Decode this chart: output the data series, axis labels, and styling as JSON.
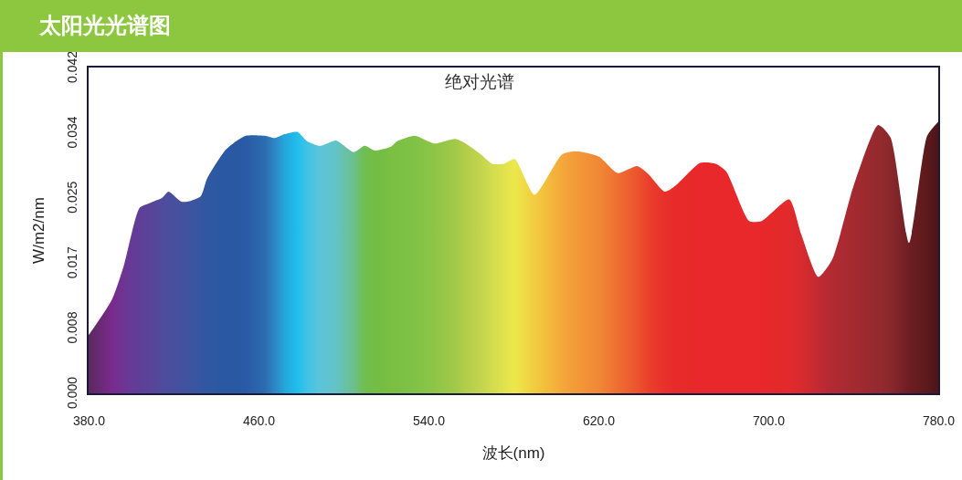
{
  "chart_data": {
    "type": "area",
    "title": "太阳光光谱图",
    "subtitle": "绝对光谱",
    "xlabel": "波长(nm)",
    "ylabel": "W/m2/nm",
    "x": [
      380,
      391,
      396.4,
      404,
      408.5,
      414.6,
      417.6,
      423.7,
      428,
      432.8,
      435.8,
      444.9,
      454,
      463,
      467.7,
      472.2,
      478.3,
      482.8,
      488.9,
      496.5,
      504.8,
      510,
      514.7,
      522.3,
      525.3,
      533.6,
      542.7,
      552.6,
      557,
      564.7,
      570,
      575.5,
      580.6,
      589.9,
      602.9,
      609.4,
      620.3,
      629,
      638.3,
      643.4,
      651.3,
      656.4,
      667.9,
      675.2,
      680.2,
      691,
      696.8,
      709.8,
      715.6,
      723.5,
      730,
      740.2,
      751.7,
      757.5,
      766.2,
      774.8,
      780
    ],
    "values": [
      0.0075,
      0.0121,
      0.0163,
      0.0239,
      0.0245,
      0.0252,
      0.026,
      0.0247,
      0.0248,
      0.0254,
      0.0277,
      0.0315,
      0.0332,
      0.0332,
      0.0329,
      0.0334,
      0.0337,
      0.0325,
      0.0319,
      0.0326,
      0.0311,
      0.0319,
      0.0313,
      0.0318,
      0.0325,
      0.0332,
      0.0322,
      0.0328,
      0.0323,
      0.0308,
      0.0296,
      0.0296,
      0.0302,
      0.0256,
      0.0308,
      0.0312,
      0.0305,
      0.0284,
      0.0293,
      0.0283,
      0.026,
      0.0268,
      0.0297,
      0.0296,
      0.0286,
      0.0222,
      0.0222,
      0.025,
      0.0204,
      0.015,
      0.0172,
      0.0268,
      0.0346,
      0.033,
      0.0194,
      0.0332,
      0.035
    ],
    "colors": [
      "#5a2a5e",
      "#7a2a8e",
      "#6e3593",
      "#5e3f98",
      "#5a4399",
      "#4f4b9c",
      "#4a4e9d",
      "#44519e",
      "#3e54a0",
      "#3656a1",
      "#2f58a2",
      "#2a58a3",
      "#2a5aa5",
      "#2c6cb0",
      "#2e86c4",
      "#24a6db",
      "#1fbfeb",
      "#3fc3e5",
      "#5cc4d8",
      "#62c3c8",
      "#6cc08a",
      "#6fbe4e",
      "#72bd44",
      "#78bf42",
      "#7bc043",
      "#80c245",
      "#8ec546",
      "#a2c948",
      "#b0cd4a",
      "#c4d44c",
      "#d2dc4e",
      "#e0e24e",
      "#ece84c",
      "#f2cc3e",
      "#f4a83a",
      "#f29a38",
      "#f08835",
      "#ee6e32",
      "#ec542e",
      "#ea402c",
      "#e8302b",
      "#e82a2a",
      "#e8282a",
      "#e8282a",
      "#e8282a",
      "#e8282a",
      "#e8282a",
      "#e22a2c",
      "#d82a2e",
      "#c22a32",
      "#b22a32",
      "#a42a30",
      "#942a2e",
      "#8a282c",
      "#6e1e22",
      "#5a1a1c",
      "#4e1416"
    ],
    "xlim": [
      380,
      780
    ],
    "xticks": [
      {
        "value": 380,
        "label": "380.0"
      },
      {
        "value": 460,
        "label": "460.0"
      },
      {
        "value": 540,
        "label": "540.0"
      },
      {
        "value": 620,
        "label": "620.0"
      },
      {
        "value": 700,
        "label": "700.0"
      },
      {
        "value": 780,
        "label": "780.0"
      }
    ],
    "ylim": [
      0,
      0.042
    ],
    "yticks": [
      {
        "value": 0,
        "label": "0.000"
      },
      {
        "value": 0.0084,
        "label": "0.008"
      },
      {
        "value": 0.0168,
        "label": "0.017"
      },
      {
        "value": 0.0252,
        "label": "0.025"
      },
      {
        "value": 0.0336,
        "label": "0.034"
      },
      {
        "value": 0.042,
        "label": "0.042"
      }
    ]
  }
}
